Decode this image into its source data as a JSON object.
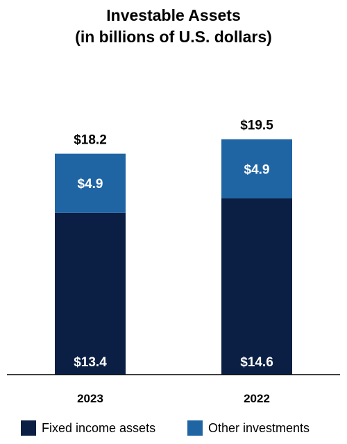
{
  "chart_data": {
    "type": "bar",
    "stacked": true,
    "title_line1": "Investable Assets",
    "title_line2": "(in billions of U.S. dollars)",
    "categories": [
      "2023",
      "2022"
    ],
    "series": [
      {
        "name": "Fixed income assets",
        "values": [
          13.4,
          14.6
        ],
        "labels": [
          "$13.4",
          "$14.6"
        ],
        "color": "#0b1f44"
      },
      {
        "name": "Other investments",
        "values": [
          4.9,
          4.9
        ],
        "labels": [
          "$4.9",
          "$4.9"
        ],
        "color": "#1f64a3"
      }
    ],
    "totals": [
      18.2,
      19.5
    ],
    "total_labels": [
      "$18.2",
      "$19.5"
    ],
    "ylim": [
      0,
      20
    ],
    "grid": false,
    "legend": "bottom"
  }
}
